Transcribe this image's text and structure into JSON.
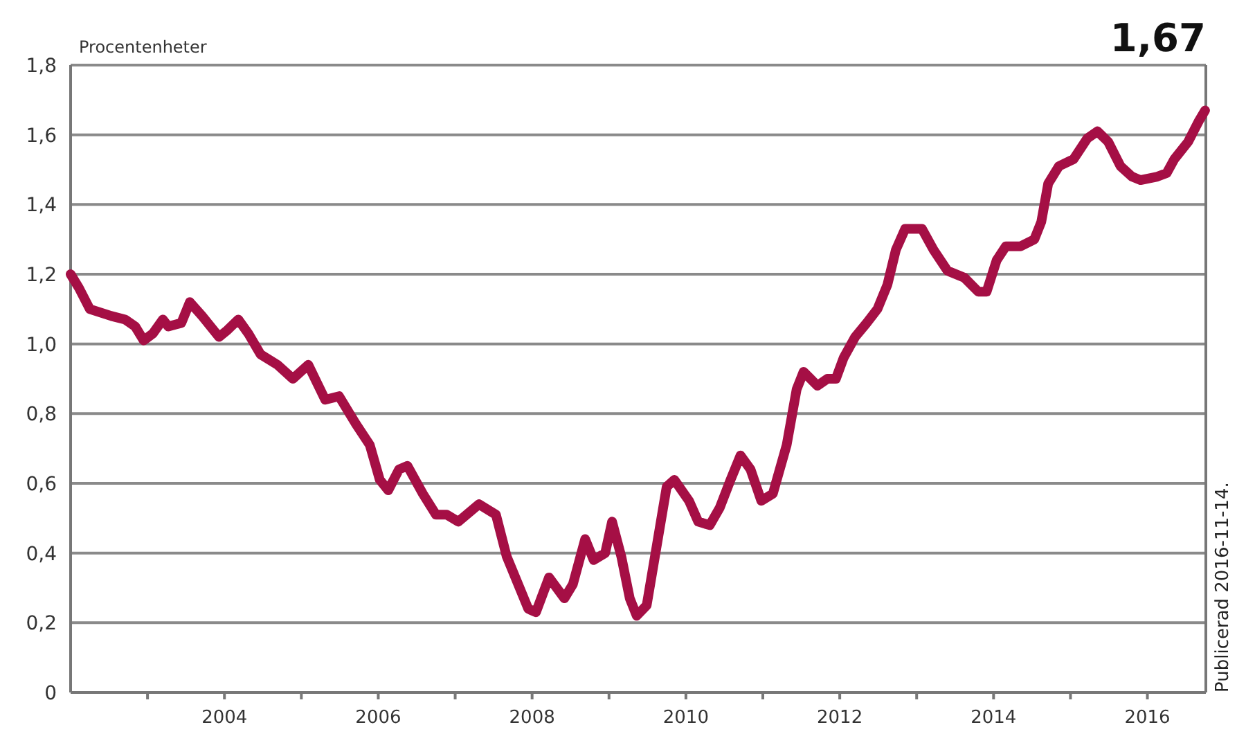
{
  "chart_data": {
    "type": "line",
    "ylabel": "Procentenheter",
    "annotations": [
      "1,67",
      "Publicerad 2016-11-14."
    ],
    "xlim": [
      2002,
      2016.76
    ],
    "ylim": [
      0,
      1.8
    ],
    "xticks": [
      {
        "value": 2003,
        "label": null
      },
      2004,
      {
        "value": 2005,
        "label": null
      },
      2006,
      {
        "value": 2007,
        "label": null
      },
      2008,
      {
        "value": 2009,
        "label": null
      },
      2010,
      {
        "value": 2011,
        "label": null
      },
      2012,
      {
        "value": 2013,
        "label": null
      },
      2014,
      {
        "value": 2015,
        "label": null
      },
      2016
    ],
    "yticks": [
      0,
      {
        "value": 0.2,
        "label": "0,2"
      },
      {
        "value": 0.4,
        "label": "0,4"
      },
      {
        "value": 0.6,
        "label": "0,6"
      },
      {
        "value": 0.8,
        "label": "0,8"
      },
      {
        "value": 1,
        "label": "1,0"
      },
      {
        "value": 1.2,
        "label": "1,2"
      },
      {
        "value": 1.4,
        "label": "1,4"
      },
      {
        "value": 1.6,
        "label": "1,6"
      },
      {
        "value": 1.8,
        "label": "1,8"
      }
    ],
    "grid": "y",
    "line_style": "solid",
    "series": [
      {
        "color": "#a50f45",
        "x": [
          2002,
          2002.11,
          2002.25,
          2002.53,
          2002.71,
          2002.84,
          2002.95,
          2003.07,
          2003.2,
          2003.27,
          2003.44,
          2003.55,
          2003.71,
          2003.93,
          2004.04,
          2004.18,
          2004.31,
          2004.47,
          2004.69,
          2004.89,
          2005.09,
          2005.31,
          2005.49,
          2005.71,
          2005.89,
          2006.02,
          2006.13,
          2006.27,
          2006.38,
          2006.58,
          2006.75,
          2006.89,
          2007.04,
          2007.31,
          2007.53,
          2007.67,
          2007.95,
          2008.05,
          2008.22,
          2008.42,
          2008.53,
          2008.69,
          2008.8,
          2008.95,
          2009.04,
          2009.16,
          2009.27,
          2009.36,
          2009.49,
          2009.62,
          2009.75,
          2009.85,
          2010.04,
          2010.16,
          2010.31,
          2010.44,
          2010.58,
          2010.71,
          2010.84,
          2010.98,
          2011.13,
          2011.31,
          2011.44,
          2011.53,
          2011.62,
          2011.71,
          2011.84,
          2011.95,
          2012.05,
          2012.2,
          2012.35,
          2012.49,
          2012.62,
          2012.73,
          2012.85,
          2013.07,
          2013.22,
          2013.4,
          2013.62,
          2013.8,
          2013.91,
          2014.04,
          2014.16,
          2014.35,
          2014.53,
          2014.62,
          2014.71,
          2014.85,
          2015.04,
          2015.22,
          2015.35,
          2015.49,
          2015.65,
          2015.8,
          2015.91,
          2016.13,
          2016.25,
          2016.35,
          2016.53,
          2016.67,
          2016.75
        ],
        "values": [
          1.2,
          1.16,
          1.1,
          1.08,
          1.07,
          1.05,
          1.01,
          1.03,
          1.07,
          1.05,
          1.06,
          1.12,
          1.08,
          1.02,
          1.04,
          1.07,
          1.03,
          0.97,
          0.94,
          0.9,
          0.94,
          0.84,
          0.85,
          0.77,
          0.71,
          0.61,
          0.58,
          0.64,
          0.65,
          0.57,
          0.51,
          0.51,
          0.49,
          0.54,
          0.51,
          0.39,
          0.24,
          0.23,
          0.33,
          0.27,
          0.31,
          0.44,
          0.38,
          0.4,
          0.49,
          0.39,
          0.27,
          0.22,
          0.25,
          0.42,
          0.59,
          0.61,
          0.55,
          0.49,
          0.48,
          0.53,
          0.61,
          0.68,
          0.64,
          0.55,
          0.57,
          0.71,
          0.87,
          0.92,
          0.9,
          0.88,
          0.9,
          0.9,
          0.96,
          1.02,
          1.06,
          1.1,
          1.17,
          1.27,
          1.33,
          1.33,
          1.27,
          1.21,
          1.19,
          1.15,
          1.15,
          1.24,
          1.28,
          1.28,
          1.3,
          1.35,
          1.46,
          1.51,
          1.53,
          1.59,
          1.61,
          1.58,
          1.51,
          1.48,
          1.47,
          1.48,
          1.49,
          1.53,
          1.58,
          1.64,
          1.67
        ]
      }
    ]
  }
}
